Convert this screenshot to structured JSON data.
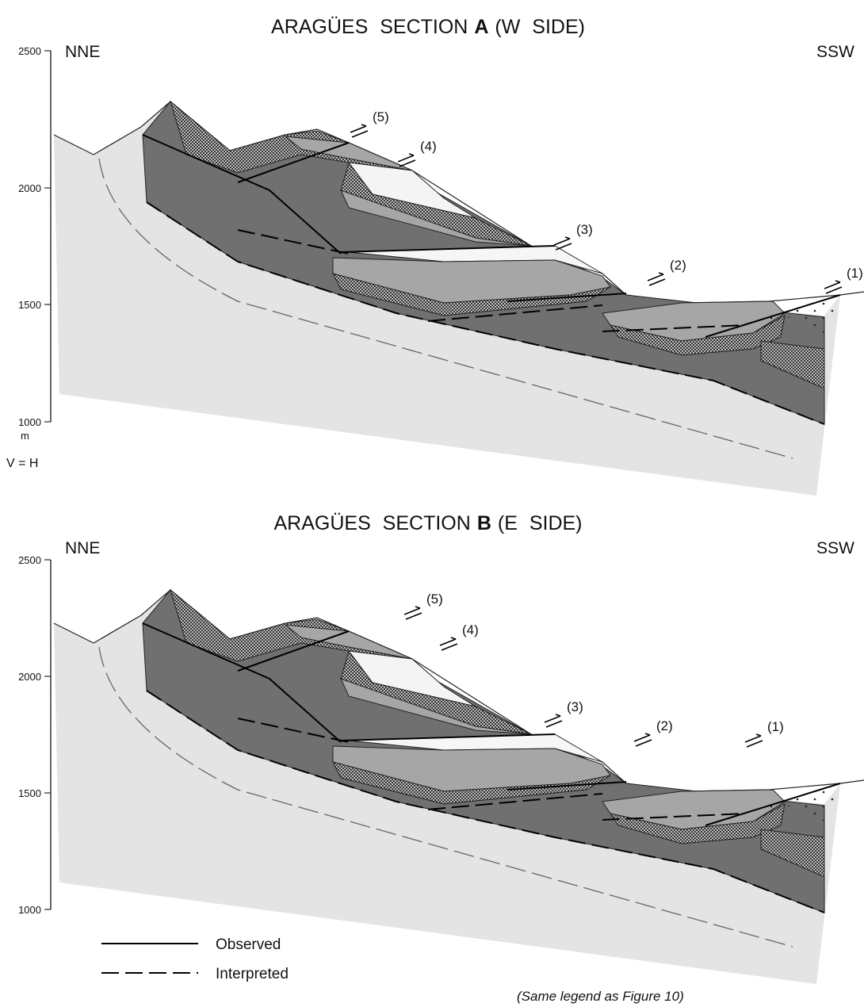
{
  "sections": [
    {
      "title": {
        "prefix": "ARAGÜES SECTION",
        "letter": "A",
        "suffix": "(W SIDE)"
      },
      "left_label": "NNE",
      "right_label": "SSW",
      "axis_ticks": [
        2500,
        2000,
        1500,
        1000
      ],
      "axis_unit": "m",
      "scale_note": "V = H",
      "fault_labels": [
        "(5)",
        "(4)",
        "(3)",
        "(2)",
        "(1)"
      ]
    },
    {
      "title": {
        "prefix": "ARAGÜES SECTION",
        "letter": "B",
        "suffix": "(E SIDE)"
      },
      "left_label": "NNE",
      "right_label": "SSW",
      "axis_ticks": [
        2500,
        2000,
        1500,
        1000
      ],
      "fault_labels": [
        "(5)",
        "(4)",
        "(3)",
        "(2)",
        "(1)"
      ]
    }
  ],
  "legend": {
    "items": [
      "Observed",
      "Interpreted"
    ]
  },
  "note": "(Same legend as Figure 10)"
}
